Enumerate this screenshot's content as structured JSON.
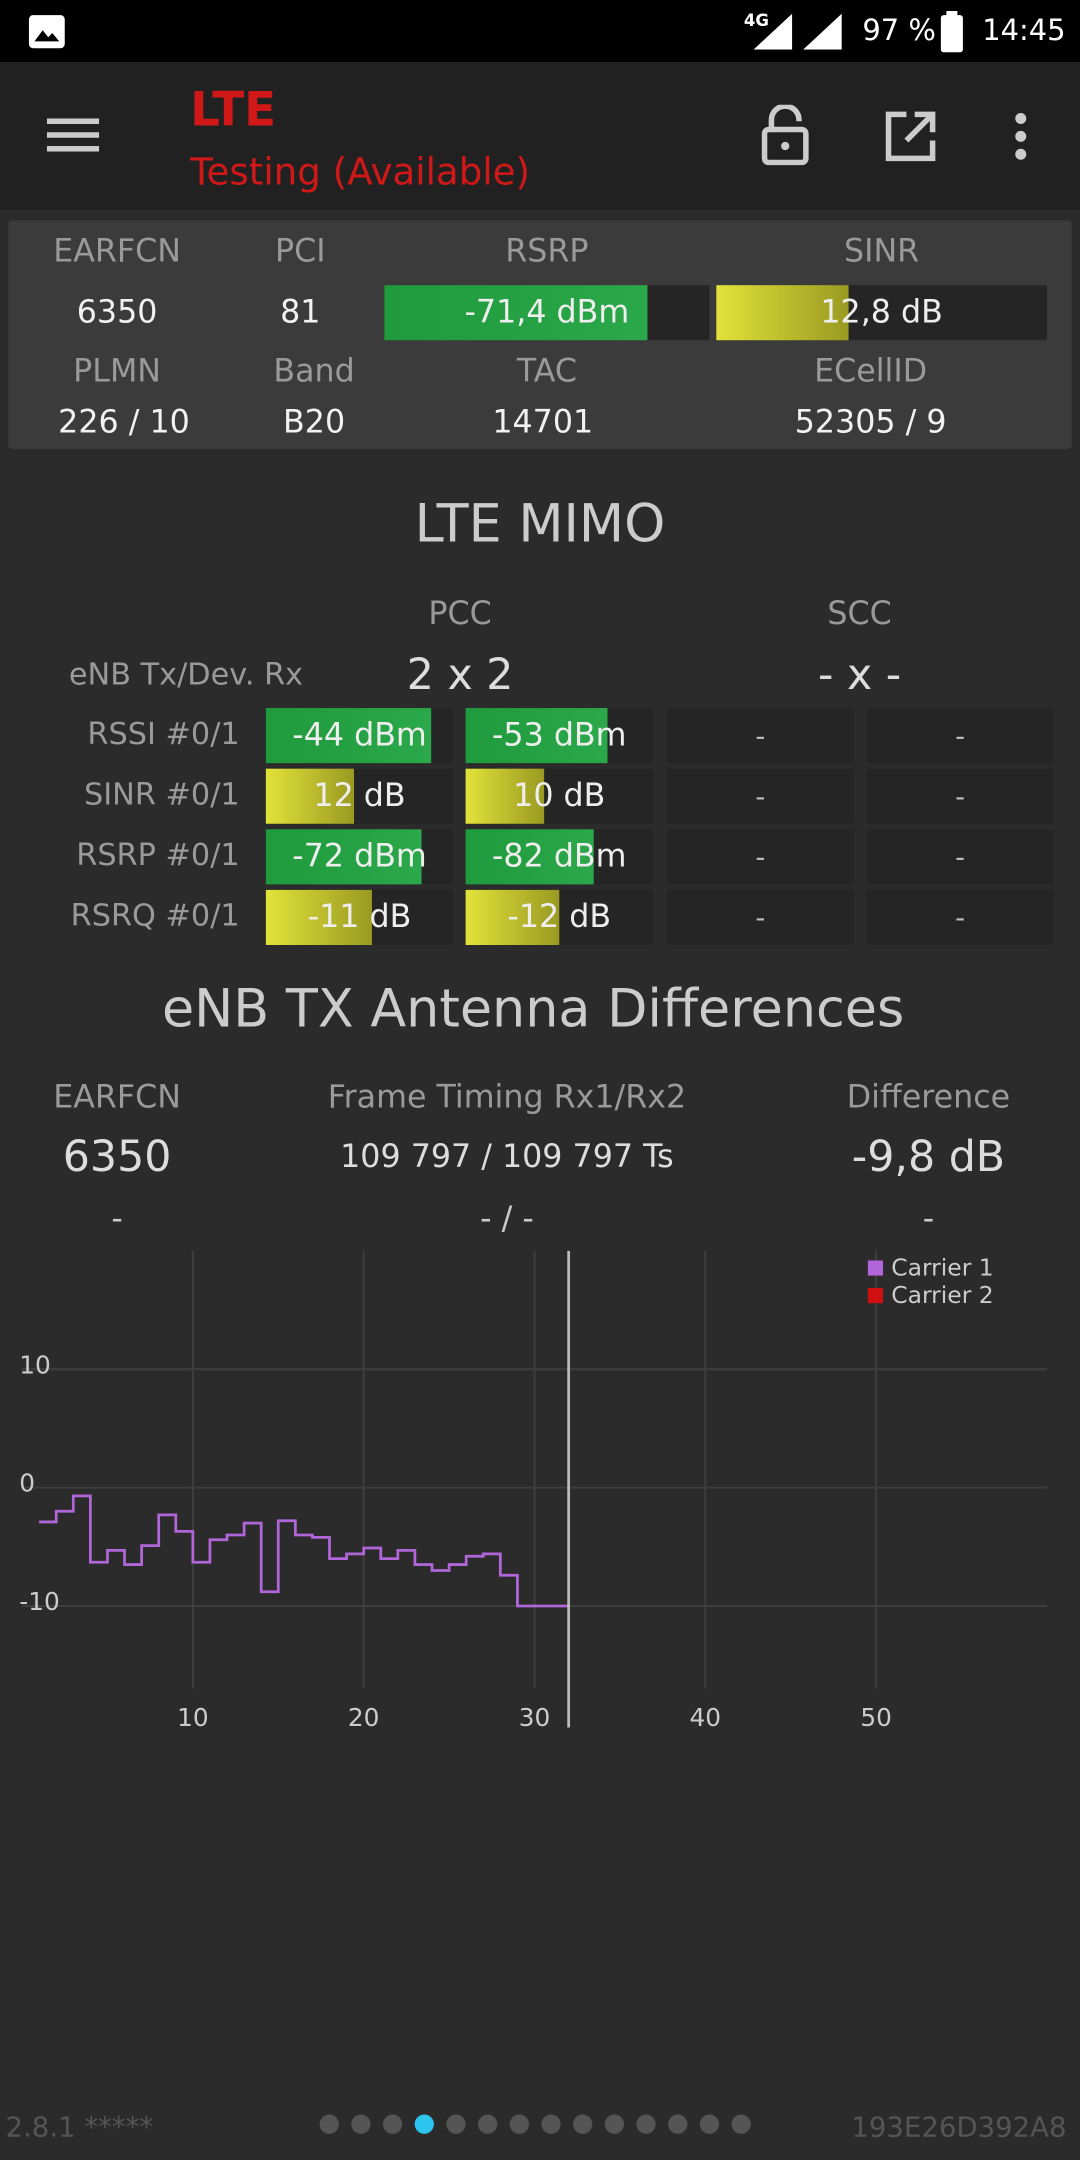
{
  "status_bar": {
    "network": "4G",
    "battery": "97 %",
    "time": "14:45"
  },
  "toolbar": {
    "title": "LTE",
    "subtitle": "Testing (Available)"
  },
  "cell_info": {
    "headers1": [
      "EARFCN",
      "PCI",
      "RSRP",
      "SINR"
    ],
    "earfcn": "6350",
    "pci": "81",
    "rsrp": {
      "value": -71.4,
      "label": "-71,4 dBm",
      "range": [
        -120,
        -60
      ]
    },
    "sinr": {
      "value": 12.8,
      "label": "12,8 dB",
      "range": [
        0,
        32
      ]
    },
    "headers2": [
      "PLMN",
      "Band",
      "TAC",
      "ECellID"
    ],
    "values2": [
      "226 / 10",
      "B20",
      "14701",
      "52305 / 9"
    ]
  },
  "mimo": {
    "title": "LTE MIMO",
    "pcc": "PCC",
    "scc": "SCC",
    "config_label": "eNB Tx/Dev. Rx",
    "pcc_config": "2 x 2",
    "scc_config": "- x -",
    "rows": [
      {
        "label": "RSSI #0/1",
        "range": [
          -110,
          -35
        ],
        "pcc": [
          {
            "value": -44,
            "label": "-44 dBm"
          },
          {
            "value": -53,
            "label": "-53 dBm"
          }
        ],
        "scc": [
          "-",
          "-"
        ]
      },
      {
        "label": "SINR #0/1",
        "range": [
          -5,
          31
        ],
        "pcc": [
          {
            "value": 12,
            "label": "12 dB"
          },
          {
            "value": 10,
            "label": "10 dB"
          }
        ],
        "scc": [
          "-",
          "-"
        ]
      },
      {
        "label": "RSRP #0/1",
        "range": [
          -130,
          -60
        ],
        "pcc": [
          {
            "value": -72,
            "label": "-72 dBm"
          },
          {
            "value": -82,
            "label": "-82 dBm"
          }
        ],
        "scc": [
          "-",
          "-"
        ]
      },
      {
        "label": "RSRQ #0/1",
        "range": [
          -20,
          -4
        ],
        "pcc": [
          {
            "value": -11,
            "label": "-11 dB"
          },
          {
            "value": -12,
            "label": "-12 dB"
          }
        ],
        "scc": [
          "-",
          "-"
        ]
      }
    ]
  },
  "antenna": {
    "title": "eNB TX Antenna Differences",
    "headers": [
      "EARFCN",
      "Frame Timing Rx1/Rx2",
      "Difference"
    ],
    "row1": [
      "6350",
      "109 797 / 109 797 Ts",
      "-9,8 dB"
    ],
    "row2": [
      "-",
      "- / -",
      "-"
    ]
  },
  "chart": {
    "type": "line",
    "xlim": [
      0,
      60
    ],
    "ylim": [
      -17,
      20
    ],
    "xticks": [
      10,
      20,
      30,
      40,
      50
    ],
    "yticks": [
      10,
      0,
      -10
    ],
    "grid": true,
    "cursor_x": 32,
    "x": [
      1,
      2,
      3,
      4,
      5,
      6,
      7,
      8,
      9,
      10,
      11,
      12,
      13,
      14,
      15,
      16,
      17,
      18,
      19,
      20,
      21,
      22,
      23,
      24,
      25,
      26,
      27,
      28,
      29
    ],
    "series": [
      {
        "name": "Carrier 1",
        "color": "#b066d8",
        "values": [
          -2.9,
          -2.0,
          -0.7,
          -6.3,
          -5.3,
          -6.5,
          -4.9,
          -2.3,
          -3.7,
          -6.3,
          -4.4,
          -4.0,
          -3.0,
          -8.8,
          -2.8,
          -4.0,
          -4.2,
          -6.0,
          -5.6,
          -5.1,
          -6.0,
          -5.3,
          -6.5,
          -7.0,
          -6.5,
          -5.8,
          -5.6,
          -7.4,
          -10.0
        ]
      },
      {
        "name": "Carrier 2",
        "color": "#d01010",
        "values": [
          null,
          null,
          null,
          null,
          null,
          null,
          null,
          null,
          null,
          null,
          null,
          null,
          null,
          null,
          null,
          null,
          null,
          null,
          null,
          null,
          null,
          null,
          null,
          null,
          null,
          null,
          null,
          null,
          null
        ]
      }
    ],
    "legend": "top-right"
  },
  "footer": {
    "version": "2.8.1 *****",
    "device_id": "193E26D392A8"
  }
}
